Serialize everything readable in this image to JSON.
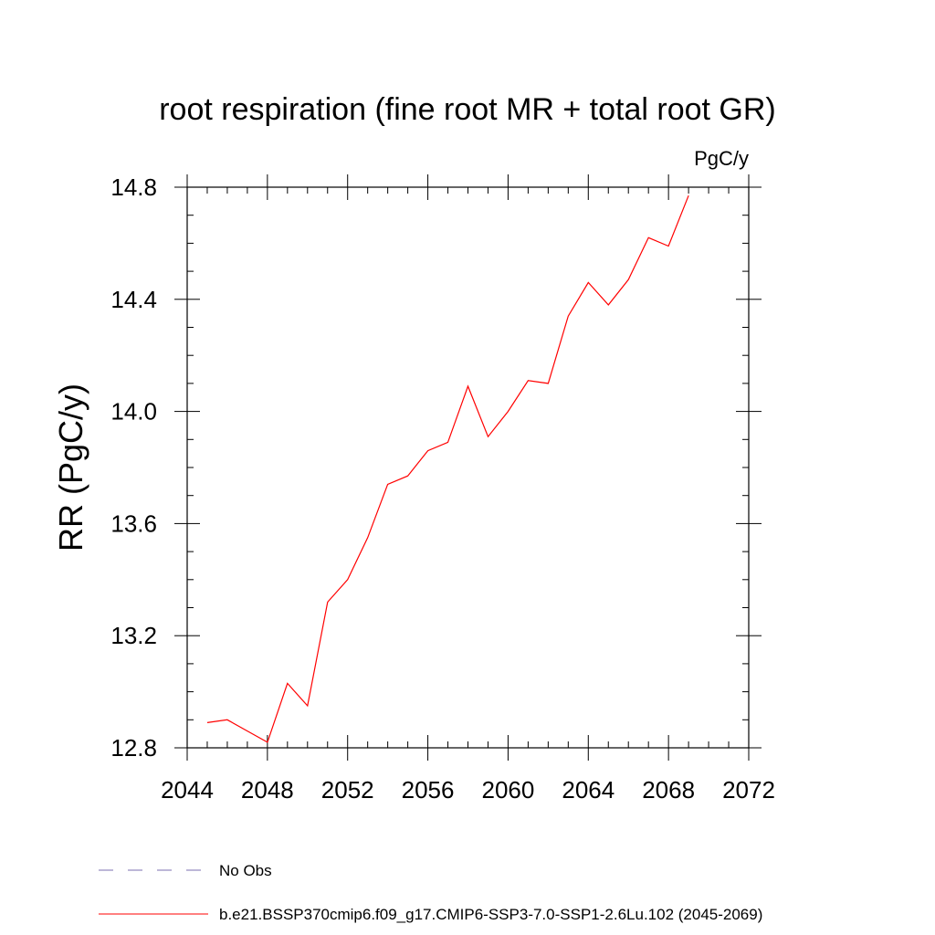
{
  "chart_data": {
    "type": "line",
    "title": "root respiration (fine root MR + total root GR)",
    "units": "PgC/y",
    "ylabel": "RR  (PgC/y)",
    "xlabel": "",
    "xlim": [
      2044,
      2072
    ],
    "ylim": [
      12.8,
      14.8
    ],
    "x_ticks": [
      2044,
      2048,
      2052,
      2056,
      2060,
      2064,
      2068,
      2072
    ],
    "x_tick_labels": [
      "2044",
      "2048",
      "2052",
      "2056",
      "2060",
      "2064",
      "2068",
      "2072"
    ],
    "y_ticks": [
      12.8,
      13.2,
      13.6,
      14.0,
      14.4,
      14.8
    ],
    "y_tick_labels": [
      "12.8",
      "13.2",
      "13.6",
      "14.0",
      "14.4",
      "14.8"
    ],
    "grid": false,
    "legend_position": "bottom",
    "series": [
      {
        "name": "b.e21.BSSP370cmip6.f09_g17.CMIP6-SSP3-7.0-SSP1-2.6Lu.102 (2045-2069)",
        "color": "#ff0000",
        "style": "solid",
        "x": [
          2045,
          2046,
          2047,
          2048,
          2049,
          2050,
          2051,
          2052,
          2053,
          2054,
          2055,
          2056,
          2057,
          2058,
          2059,
          2060,
          2061,
          2062,
          2063,
          2064,
          2065,
          2066,
          2067,
          2068,
          2069
        ],
        "y": [
          12.89,
          12.9,
          12.86,
          12.82,
          13.03,
          12.95,
          13.32,
          13.4,
          13.55,
          13.74,
          13.77,
          13.86,
          13.89,
          14.09,
          13.91,
          14.0,
          14.11,
          14.1,
          14.34,
          14.46,
          14.38,
          14.47,
          14.62,
          14.59,
          14.77
        ]
      }
    ],
    "legend": [
      {
        "label": "No Obs",
        "color": "#7b6fb0",
        "style": "dashed"
      },
      {
        "label": "b.e21.BSSP370cmip6.f09_g17.CMIP6-SSP3-7.0-SSP1-2.6Lu.102 (2045-2069)",
        "color": "#ff0000",
        "style": "solid"
      }
    ]
  }
}
